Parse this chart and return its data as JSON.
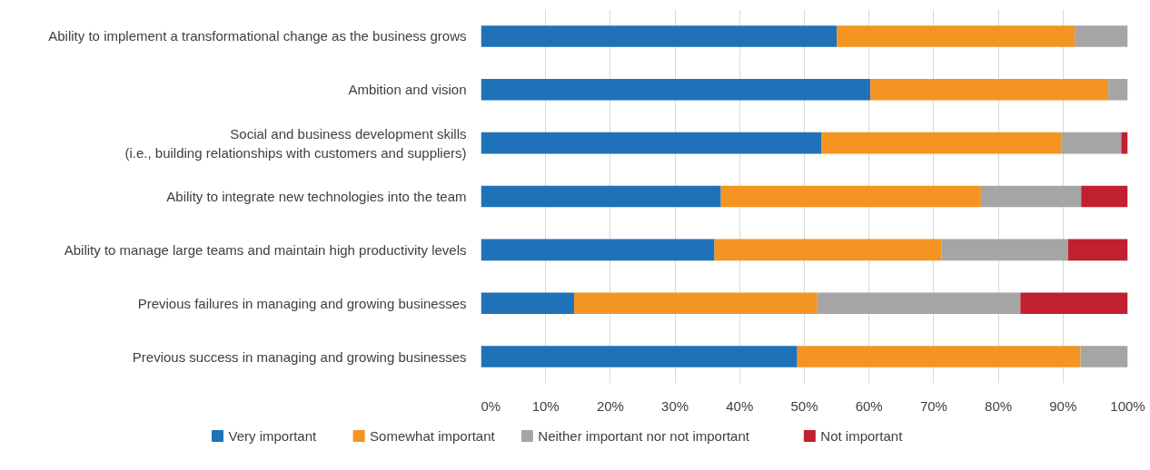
{
  "chart_data": {
    "type": "bar",
    "orientation": "horizontal",
    "stacked": true,
    "categories": [
      "Ability to implement a transformational change as the business grows",
      "Ambition and vision",
      "Social and business development skills\n(i.e., building relationships with customers and suppliers)",
      "Ability to integrate new technologies into the team",
      "Ability to manage large teams and maintain high productivity levels",
      "Previous failures in managing and growing businesses",
      "Previous success in managing and growing businesses"
    ],
    "series": [
      {
        "name": "Very important",
        "color": "#1f72b8",
        "values": [
          55.0,
          60.2,
          52.6,
          37.1,
          36.1,
          14.4,
          48.9
        ]
      },
      {
        "name": "Somewhat important",
        "color": "#f39423",
        "values": [
          36.8,
          36.8,
          37.1,
          40.2,
          35.1,
          37.6,
          43.8
        ]
      },
      {
        "name": "Neither important nor not important",
        "color": "#a5a5a5",
        "values": [
          8.2,
          3.0,
          9.3,
          15.5,
          19.6,
          31.4,
          7.3
        ]
      },
      {
        "name": "Not important",
        "color": "#c0202f",
        "values": [
          0,
          0,
          1.0,
          7.2,
          9.2,
          16.6,
          0
        ]
      }
    ],
    "xlim": [
      0,
      100
    ],
    "xticks": [
      {
        "value": 0,
        "label": "0%"
      },
      {
        "value": 10,
        "label": "10%"
      },
      {
        "value": 20,
        "label": "20%"
      },
      {
        "value": 30,
        "label": "30%"
      },
      {
        "value": 40,
        "label": "40%"
      },
      {
        "value": 50,
        "label": "50%"
      },
      {
        "value": 60,
        "label": "60%"
      },
      {
        "value": 70,
        "label": "70%"
      },
      {
        "value": 80,
        "label": "80%"
      },
      {
        "value": 90,
        "label": "90%"
      },
      {
        "value": 100,
        "label": "100%"
      }
    ],
    "grid": "x",
    "legend": "bottom"
  }
}
